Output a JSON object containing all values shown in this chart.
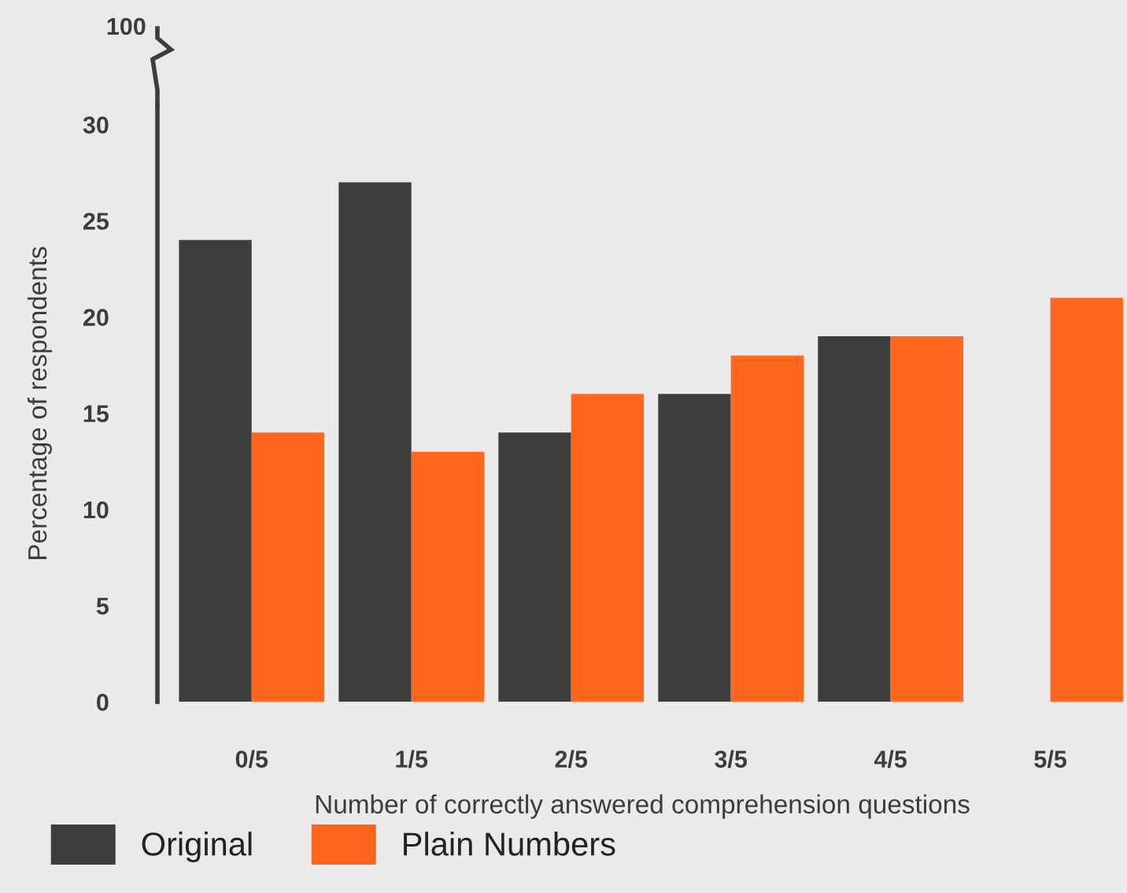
{
  "chart_data": {
    "type": "bar",
    "xlabel": "Number of correctly answered comprehension questions",
    "ylabel": "Percentage of respondents",
    "categories": [
      "0/5",
      "1/5",
      "2/5",
      "3/5",
      "4/5",
      "5/5"
    ],
    "series": [
      {
        "name": "Original",
        "color": "#3d3d3b",
        "values": [
          24,
          27,
          14,
          16,
          19,
          0
        ]
      },
      {
        "name": "Plain Numbers",
        "color": "#ff671f",
        "values": [
          14,
          13,
          16,
          18,
          19,
          21
        ]
      }
    ],
    "ylim": [
      0,
      31
    ],
    "yticks": [
      0,
      5,
      10,
      15,
      20,
      25,
      30
    ],
    "annotations": [
      "100"
    ],
    "grid": false,
    "legend": "bottom left"
  }
}
